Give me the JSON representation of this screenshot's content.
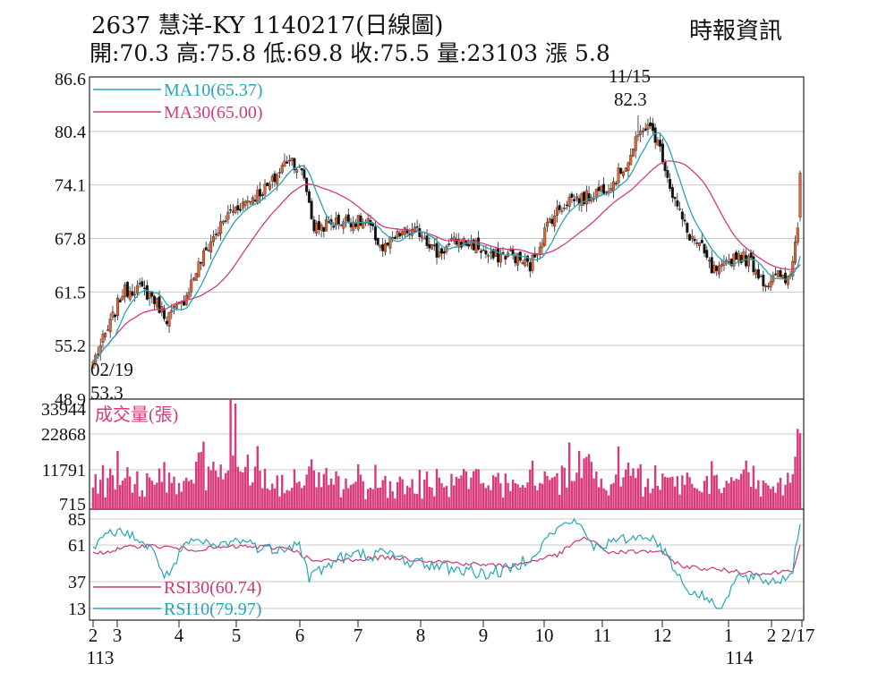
{
  "header": {
    "title": "2637  慧洋-KY 1140217(日線圖)",
    "ohlc": "開:70.3 高:75.8 低:69.8 收:75.5 量:23103 漲 5.8",
    "source": "時報資訊"
  },
  "colors": {
    "up": "#e8622f",
    "down": "#111111",
    "ma10": "#26a5b7",
    "ma30": "#d23c7a",
    "volume": "#d83a7b",
    "rsi30": "#c83a72",
    "rsi10": "#26a5b7",
    "grid": "#c8c8c8"
  },
  "chart_data": [
    {
      "type": "candlestick",
      "title": "2637  慧洋-KY 1140217(日線圖)",
      "ylim": [
        48.9,
        86.6
      ],
      "y_ticks": [
        "86.6",
        "80.4",
        "74.1",
        "67.8",
        "61.5",
        "55.2",
        "48.9"
      ],
      "legend": [
        {
          "name": "MA10",
          "label": "MA10(65.37)"
        },
        {
          "name": "MA30",
          "label": "MA30(65.00)"
        }
      ],
      "annotations": [
        {
          "date": "02/19",
          "label": "02/19",
          "value_label": "53.3",
          "value": 53.3
        },
        {
          "date": "11/15",
          "label": "11/15",
          "value_label": "82.3",
          "value": 82.3
        }
      ],
      "close_anchors": [
        [
          0,
          53.3
        ],
        [
          6,
          57
        ],
        [
          12,
          61.5
        ],
        [
          18,
          62
        ],
        [
          24,
          61
        ],
        [
          30,
          58.5
        ],
        [
          36,
          60
        ],
        [
          42,
          64
        ],
        [
          48,
          67.5
        ],
        [
          56,
          71
        ],
        [
          64,
          72.5
        ],
        [
          72,
          74
        ],
        [
          80,
          77.5
        ],
        [
          86,
          75
        ],
        [
          90,
          69
        ],
        [
          96,
          69.5
        ],
        [
          104,
          70
        ],
        [
          112,
          69.5
        ],
        [
          118,
          66.5
        ],
        [
          126,
          68.5
        ],
        [
          134,
          68.5
        ],
        [
          140,
          66
        ],
        [
          148,
          67.5
        ],
        [
          156,
          67
        ],
        [
          162,
          65.5
        ],
        [
          170,
          66
        ],
        [
          178,
          64.5
        ],
        [
          186,
          70
        ],
        [
          194,
          72.5
        ],
        [
          200,
          72.5
        ],
        [
          206,
          73.5
        ],
        [
          212,
          74.5
        ],
        [
          218,
          77
        ],
        [
          224,
          81
        ],
        [
          228,
          80.5
        ],
        [
          232,
          77.5
        ],
        [
          236,
          73
        ],
        [
          242,
          68.5
        ],
        [
          248,
          66.5
        ],
        [
          252,
          64
        ],
        [
          256,
          64
        ],
        [
          262,
          66
        ],
        [
          268,
          65
        ],
        [
          274,
          62.5
        ],
        [
          280,
          63.5
        ],
        [
          282,
          62.5
        ],
        [
          285,
          65
        ],
        [
          287,
          69.7
        ],
        [
          288,
          75.5
        ]
      ]
    },
    {
      "type": "bar",
      "title": "成交量(張)",
      "y_ticks": [
        "33944",
        "22868",
        "11791",
        "715"
      ],
      "ylim": [
        715,
        33944
      ],
      "peaks": [
        {
          "bar": 56,
          "value": 33944
        },
        {
          "bar": 58,
          "value": 32500
        },
        {
          "bar": 198,
          "value": 17500
        },
        {
          "bar": 287,
          "value": 24500
        },
        {
          "bar": 288,
          "value": 23103
        }
      ]
    },
    {
      "type": "line",
      "title": "RSI",
      "y_ticks": [
        "85",
        "61",
        "37",
        "13"
      ],
      "ylim": [
        13,
        85
      ],
      "series": [
        {
          "name": "RSI30",
          "label": "RSI30(60.74)",
          "last": 60.74,
          "anchors": [
            [
              0,
              55
            ],
            [
              20,
              61
            ],
            [
              40,
              58
            ],
            [
              60,
              60
            ],
            [
              80,
              59
            ],
            [
              90,
              50
            ],
            [
              120,
              53
            ],
            [
              150,
              49
            ],
            [
              170,
              47
            ],
            [
              190,
              55
            ],
            [
              200,
              68
            ],
            [
              210,
              56
            ],
            [
              230,
              57
            ],
            [
              240,
              47
            ],
            [
              260,
              44
            ],
            [
              275,
              42
            ],
            [
              285,
              45
            ],
            [
              288,
              60.74
            ]
          ]
        },
        {
          "name": "RSI10",
          "label": "RSI10(79.97)",
          "last": 79.97,
          "anchors": [
            [
              0,
              58
            ],
            [
              8,
              74
            ],
            [
              16,
              70
            ],
            [
              24,
              57
            ],
            [
              30,
              40
            ],
            [
              40,
              65
            ],
            [
              50,
              60
            ],
            [
              60,
              66
            ],
            [
              70,
              58
            ],
            [
              84,
              62
            ],
            [
              88,
              40
            ],
            [
              100,
              52
            ],
            [
              110,
              55
            ],
            [
              120,
              55
            ],
            [
              130,
              50
            ],
            [
              150,
              45
            ],
            [
              160,
              42
            ],
            [
              170,
              45
            ],
            [
              180,
              56
            ],
            [
              188,
              74
            ],
            [
              196,
              85
            ],
            [
              204,
              60
            ],
            [
              216,
              66
            ],
            [
              226,
              70
            ],
            [
              234,
              55
            ],
            [
              242,
              30
            ],
            [
              250,
              22
            ],
            [
              256,
              13
            ],
            [
              262,
              40
            ],
            [
              270,
              38
            ],
            [
              280,
              37
            ],
            [
              285,
              45
            ],
            [
              288,
              79.97
            ]
          ]
        }
      ]
    }
  ],
  "x_axis": {
    "months": [
      {
        "label": "2",
        "bar": 0
      },
      {
        "label": "3",
        "bar": 10
      },
      {
        "label": "4",
        "bar": 31
      },
      {
        "label": "5",
        "bar": 52
      },
      {
        "label": "6",
        "bar": 74
      },
      {
        "label": "7",
        "bar": 96
      },
      {
        "label": "8",
        "bar": 118
      },
      {
        "label": "9",
        "bar": 141
      },
      {
        "label": "10",
        "bar": 163
      },
      {
        "label": "11",
        "bar": 185
      },
      {
        "label": "12",
        "bar": 206
      },
      {
        "label": "1",
        "bar": 229
      },
      {
        "label": "2",
        "bar": 250
      },
      {
        "label": "2/17",
        "bar": 258
      }
    ],
    "years": [
      {
        "label": "113",
        "bar": 0
      },
      {
        "label": "114",
        "bar": 229
      }
    ]
  }
}
